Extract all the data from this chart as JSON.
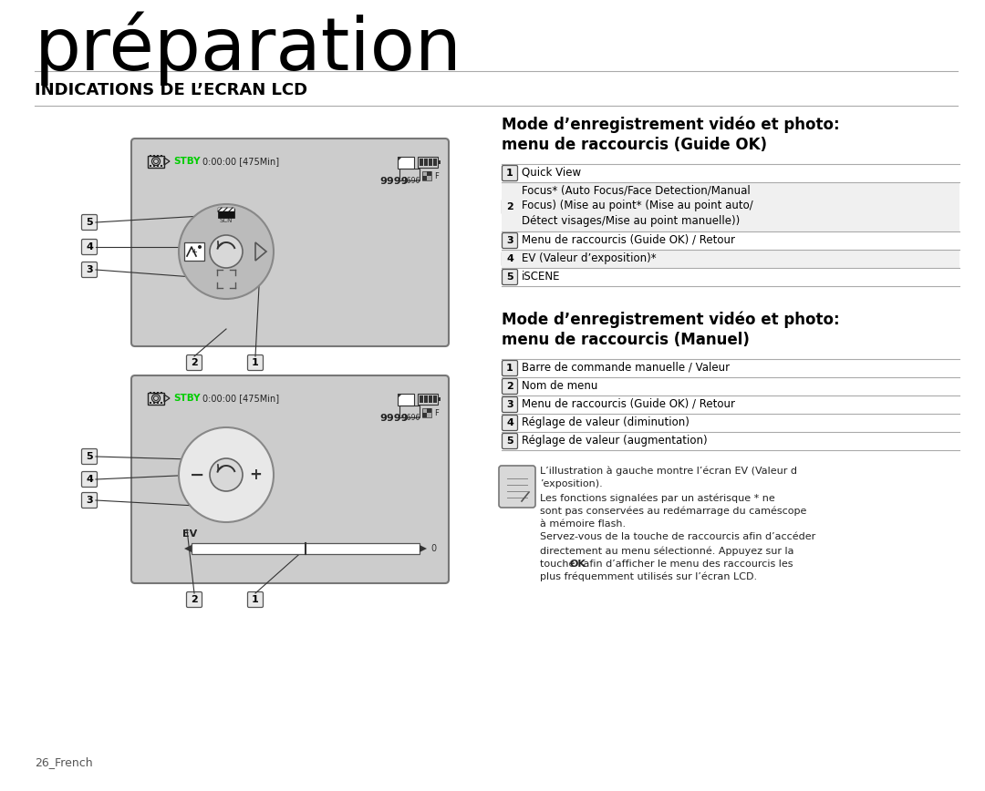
{
  "title": "préparation",
  "section_title": "INDICATIONS DE L’ECRAN LCD",
  "bg_color": "#ffffff",
  "section1_title_line1": "Mode d’enregistrement vidéo et photo:",
  "section1_title_line2": "menu de raccourcis (Guide OK)",
  "section1_items": [
    [
      "1",
      "Quick View"
    ],
    [
      "2",
      "Focus* (Auto Focus/Face Detection/Manual\nFocus) (Mise au point* (Mise au point auto/\nDétect visages/Mise au point manuelle))"
    ],
    [
      "3",
      "Menu de raccourcis (Guide OK) / Retour"
    ],
    [
      "4",
      "EV (Valeur d’exposition)*"
    ],
    [
      "5",
      "iSCENE"
    ]
  ],
  "section2_title_line1": "Mode d’enregistrement vidéo et photo:",
  "section2_title_line2": "menu de raccourcis (Manuel)",
  "section2_items": [
    [
      "1",
      "Barre de commande manuelle / Valeur"
    ],
    [
      "2",
      "Nom de menu"
    ],
    [
      "3",
      "Menu de raccourcis (Guide OK) / Retour"
    ],
    [
      "4",
      "Réglage de valeur (diminution)"
    ],
    [
      "5",
      "Réglage de valeur (augmentation)"
    ]
  ],
  "note_line1": "L’illustration à gauche montre l’écran EV (Valeur d",
  "note_line2": "’exposition).",
  "note_line3": "Les fonctions signalées par un astérisque * ne",
  "note_line4": "sont pas conservées au redémarrage du caméscope",
  "note_line5": "à mémoire flash.",
  "note_line6": "Servez-vous de la touche de raccourcis afin d’accéder",
  "note_line7": "directement au menu sélectionné. Appuyez sur la",
  "note_line8_pre": "touche ",
  "note_line8_bold": "OK",
  "note_line8_post": " afin d’afficher le menu des raccourcis les",
  "note_line9": "plus fréquemment utilisés sur l’écran LCD.",
  "footer": "26_French",
  "stby_color": "#00cc00",
  "screen_bg": "#cccccc",
  "screen_border": "#888888"
}
